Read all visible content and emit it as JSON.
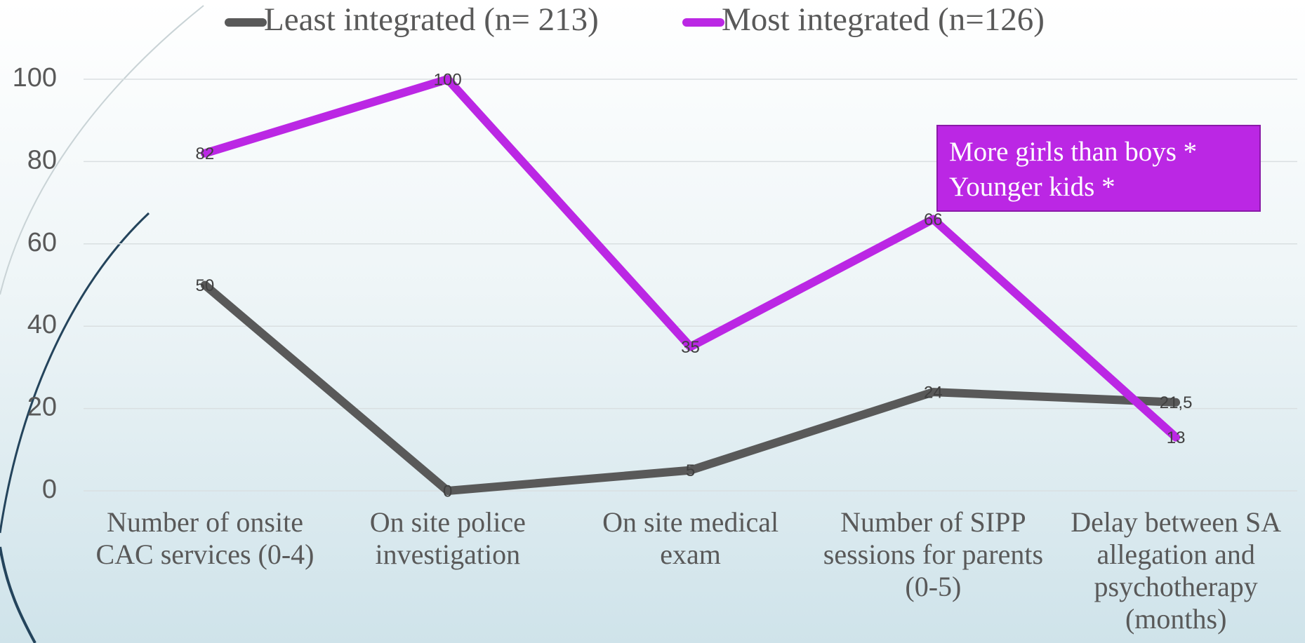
{
  "chart_data": {
    "type": "line",
    "categories": [
      "Number of onsite CAC services (0-4)",
      "On site police investigation",
      "On site medical exam",
      "Number of SIPP sessions for parents (0-5)",
      "Delay between SA allegation and psychotherapy (months)"
    ],
    "series": [
      {
        "name": "Least integrated (n= 213)",
        "color": "#595959",
        "values": [
          50,
          0,
          5,
          24,
          21.5
        ],
        "value_labels": [
          "50",
          "0",
          "5",
          "24",
          "21,5"
        ]
      },
      {
        "name": "Most integrated (n=126)",
        "color": "#bb27e4",
        "values": [
          82,
          100,
          35,
          66,
          13
        ]
      }
    ],
    "ylim": [
      0,
      100
    ],
    "yticks": [
      0,
      20,
      40,
      60,
      80,
      100
    ],
    "grid": true,
    "legend": "top",
    "annotation": [
      "More girls than boys *",
      "Younger kids *"
    ]
  }
}
